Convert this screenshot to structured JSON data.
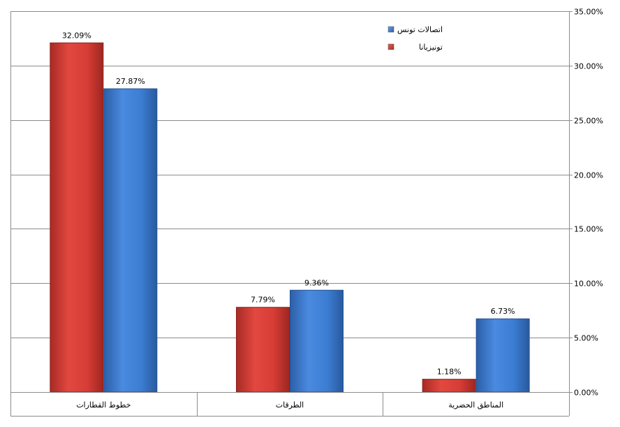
{
  "chart_data": {
    "type": "bar",
    "categories": [
      "خطوط القطارات",
      "الطرقات",
      "المناطق الحضرية"
    ],
    "series": [
      {
        "name": "تونيزيانا",
        "values": [
          32.09,
          7.79,
          1.18
        ],
        "labels": [
          "32.09%",
          "7.79%",
          "1.18%"
        ],
        "color": "#d9403a"
      },
      {
        "name": "اتصالات تونس",
        "values": [
          27.87,
          9.36,
          6.73
        ],
        "labels": [
          "27.87%",
          "9.36%",
          "6.73%"
        ],
        "color": "#3f7fd1"
      }
    ],
    "y_ticks": [
      0,
      5,
      10,
      15,
      20,
      25,
      30,
      35
    ],
    "y_tick_labels": [
      "0.00%",
      "5.00%",
      "10.00%",
      "15.00%",
      "20.00%",
      "25.00%",
      "30.00%",
      "35.00%"
    ],
    "ylim": [
      0,
      35
    ],
    "y_axis_side": "right",
    "grid": true,
    "legend": {
      "position": "top-right",
      "order": [
        "اتصالات تونس",
        "تونيزيانا"
      ]
    }
  }
}
